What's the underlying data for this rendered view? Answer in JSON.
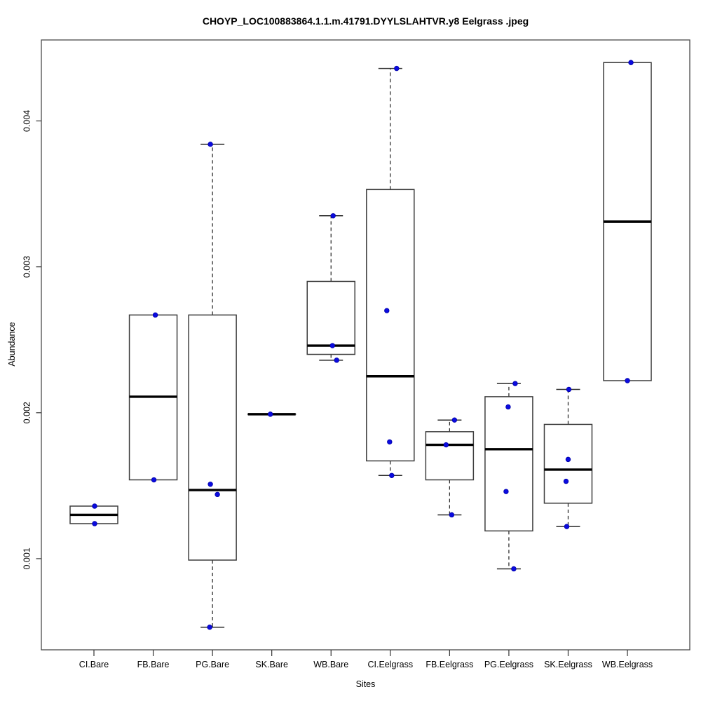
{
  "figure": {
    "title": "CHOYP_LOC100883864.1.1.m.41791.DYYLSLAHTVR.y8 Eelgrass .jpeg"
  },
  "chart_data": {
    "type": "boxplot",
    "title": "CHOYP_LOC100883864.1.1.m.41791.DYYLSLAHTVR.y8 Eelgrass .jpeg",
    "xlabel": "Sites",
    "ylabel": "Abundance",
    "ylim": [
      0.000375,
      0.004555
    ],
    "yticks": [
      0.001,
      0.002,
      0.003,
      0.004
    ],
    "ytick_labels": [
      "0.001",
      "0.002",
      "0.003",
      "0.004"
    ],
    "grid": false,
    "legend": null,
    "colors": {
      "point": "#0b0be0",
      "box_border": "#3d3d3d",
      "median": "#000000",
      "whisker": "#2a2a2a",
      "frame": "#4a4a4a"
    },
    "categories": [
      "CI.Bare",
      "FB.Bare",
      "PG.Bare",
      "SK.Bare",
      "WB.Bare",
      "CI.Eelgrass",
      "FB.Eelgrass",
      "PG.Eelgrass",
      "SK.Eelgrass",
      "WB.Eelgrass"
    ],
    "boxes": [
      {
        "category": "CI.Bare",
        "whisker_low": 0.00124,
        "q1": 0.00124,
        "median": 0.0013,
        "q3": 0.00136,
        "whisker_high": 0.00136,
        "points": [
          {
            "value": 0.00136,
            "dx": 1
          },
          {
            "value": 0.00124,
            "dx": 1
          }
        ]
      },
      {
        "category": "FB.Bare",
        "whisker_low": 0.00154,
        "q1": 0.00154,
        "median": 0.00211,
        "q3": 0.00267,
        "whisker_high": 0.00267,
        "points": [
          {
            "value": 0.00267,
            "dx": 3
          },
          {
            "value": 0.00154,
            "dx": 1
          }
        ]
      },
      {
        "category": "PG.Bare",
        "whisker_low": 0.00053,
        "q1": 0.00099,
        "median": 0.00147,
        "q3": 0.00267,
        "whisker_high": 0.00384,
        "points": [
          {
            "value": 0.00384,
            "dx": -3
          },
          {
            "value": 0.00151,
            "dx": -3
          },
          {
            "value": 0.00144,
            "dx": 7
          },
          {
            "value": 0.00053,
            "dx": -4
          }
        ]
      },
      {
        "category": "SK.Bare",
        "whisker_low": 0.00199,
        "q1": 0.00199,
        "median": 0.00199,
        "q3": 0.00199,
        "whisker_high": 0.00199,
        "points": [
          {
            "value": 0.00199,
            "dx": -2
          }
        ]
      },
      {
        "category": "WB.Bare",
        "whisker_low": 0.00236,
        "q1": 0.0024,
        "median": 0.00246,
        "q3": 0.0029,
        "whisker_high": 0.00335,
        "points": [
          {
            "value": 0.00335,
            "dx": 3
          },
          {
            "value": 0.00246,
            "dx": 2
          },
          {
            "value": 0.00236,
            "dx": 8
          }
        ]
      },
      {
        "category": "CI.Eelgrass",
        "whisker_low": 0.00157,
        "q1": 0.00167,
        "median": 0.00225,
        "q3": 0.00353,
        "whisker_high": 0.00436,
        "points": [
          {
            "value": 0.00436,
            "dx": 9
          },
          {
            "value": 0.0027,
            "dx": -5
          },
          {
            "value": 0.0018,
            "dx": -1
          },
          {
            "value": 0.00157,
            "dx": 2
          }
        ]
      },
      {
        "category": "FB.Eelgrass",
        "whisker_low": 0.0013,
        "q1": 0.00154,
        "median": 0.00178,
        "q3": 0.00187,
        "whisker_high": 0.00195,
        "points": [
          {
            "value": 0.00195,
            "dx": 7
          },
          {
            "value": 0.00178,
            "dx": -5
          },
          {
            "value": 0.0013,
            "dx": 3
          }
        ]
      },
      {
        "category": "PG.Eelgrass",
        "whisker_low": 0.00093,
        "q1": 0.00119,
        "median": 0.00175,
        "q3": 0.00211,
        "whisker_high": 0.0022,
        "points": [
          {
            "value": 0.0022,
            "dx": 9
          },
          {
            "value": 0.00204,
            "dx": -1
          },
          {
            "value": 0.00146,
            "dx": -4
          },
          {
            "value": 0.00093,
            "dx": 7
          }
        ]
      },
      {
        "category": "SK.Eelgrass",
        "whisker_low": 0.00122,
        "q1": 0.00138,
        "median": 0.00161,
        "q3": 0.00192,
        "whisker_high": 0.00216,
        "points": [
          {
            "value": 0.00216,
            "dx": 1
          },
          {
            "value": 0.00168,
            "dx": 0
          },
          {
            "value": 0.00153,
            "dx": -3
          },
          {
            "value": 0.00122,
            "dx": -2
          }
        ]
      },
      {
        "category": "WB.Eelgrass",
        "whisker_low": 0.00222,
        "q1": 0.00222,
        "median": 0.00331,
        "q3": 0.0044,
        "whisker_high": 0.0044,
        "points": [
          {
            "value": 0.0044,
            "dx": 5
          },
          {
            "value": 0.00222,
            "dx": 0
          }
        ]
      }
    ]
  }
}
